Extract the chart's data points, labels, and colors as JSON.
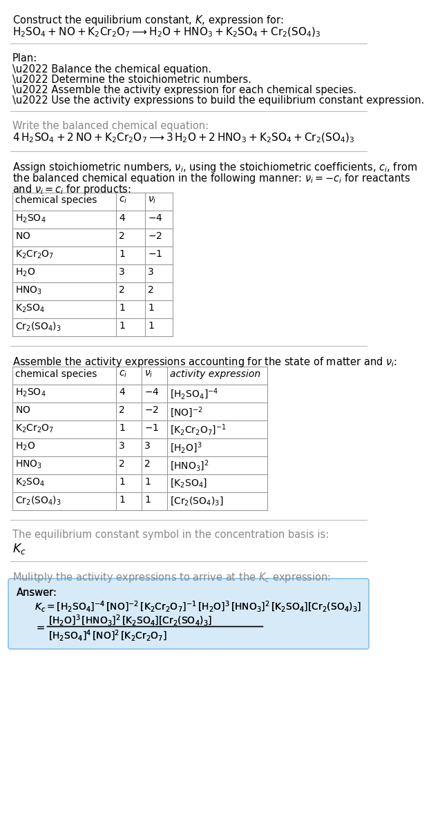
{
  "title_line1": "Construct the equilibrium constant, $K$, expression for:",
  "title_chem": "$\\mathrm{H_2SO_4 + NO + K_2Cr_2O_7 \\longrightarrow H_2O + HNO_3 + K_2SO_4 + Cr_2(SO_4)_3}$",
  "plan_header": "Plan:",
  "plan_items": [
    "\\u2022 Balance the chemical equation.",
    "\\u2022 Determine the stoichiometric numbers.",
    "\\u2022 Assemble the activity expression for each chemical species.",
    "\\u2022 Use the activity expressions to build the equilibrium constant expression."
  ],
  "balanced_header": "Write the balanced chemical equation:",
  "balanced_eq": "$\\mathrm{4\\,H_2SO_4 + 2\\,NO + K_2Cr_2O_7 \\longrightarrow 3\\,H_2O + 2\\,HNO_3 + K_2SO_4 + Cr_2(SO_4)_3}$",
  "stoich_text1": "Assign stoichiometric numbers, $\\nu_i$, using the stoichiometric coefficients, $c_i$, from",
  "stoich_text2": "the balanced chemical equation in the following manner: $\\nu_i = -c_i$ for reactants",
  "stoich_text3": "and $\\nu_i = c_i$ for products:",
  "table1_headers": [
    "chemical species",
    "$c_i$",
    "$\\nu_i$"
  ],
  "table1_rows": [
    [
      "$\\mathrm{H_2SO_4}$",
      "4",
      "$-4$"
    ],
    [
      "$\\mathrm{NO}$",
      "2",
      "$-2$"
    ],
    [
      "$\\mathrm{K_2Cr_2O_7}$",
      "1",
      "$-1$"
    ],
    [
      "$\\mathrm{H_2O}$",
      "3",
      "3"
    ],
    [
      "$\\mathrm{HNO_3}$",
      "2",
      "2"
    ],
    [
      "$\\mathrm{K_2SO_4}$",
      "1",
      "1"
    ],
    [
      "$\\mathrm{Cr_2(SO_4)_3}$",
      "1",
      "1"
    ]
  ],
  "activity_header": "Assemble the activity expressions accounting for the state of matter and $\\nu_i$:",
  "table2_headers": [
    "chemical species",
    "$c_i$",
    "$\\nu_i$",
    "activity expression"
  ],
  "table2_rows": [
    [
      "$\\mathrm{H_2SO_4}$",
      "4",
      "$-4$",
      "$[\\mathrm{H_2SO_4}]^{-4}$"
    ],
    [
      "$\\mathrm{NO}$",
      "2",
      "$-2$",
      "$[\\mathrm{NO}]^{-2}$"
    ],
    [
      "$\\mathrm{K_2Cr_2O_7}$",
      "1",
      "$-1$",
      "$[\\mathrm{K_2Cr_2O_7}]^{-1}$"
    ],
    [
      "$\\mathrm{H_2O}$",
      "3",
      "3",
      "$[\\mathrm{H_2O}]^{3}$"
    ],
    [
      "$\\mathrm{HNO_3}$",
      "2",
      "2",
      "$[\\mathrm{HNO_3}]^{2}$"
    ],
    [
      "$\\mathrm{K_2SO_4}$",
      "1",
      "1",
      "$[\\mathrm{K_2SO_4}]$"
    ],
    [
      "$\\mathrm{Cr_2(SO_4)_3}$",
      "1",
      "1",
      "$[\\mathrm{Cr_2(SO_4)_3}]$"
    ]
  ],
  "kc_header": "The equilibrium constant symbol in the concentration basis is:",
  "kc_symbol": "$K_c$",
  "multiply_header": "Mulitply the activity expressions to arrive at the $K_c$ expression:",
  "answer_label": "Answer:",
  "ans_line1": "$K_c = [\\mathrm{H_2SO_4}]^{-4}\\,[\\mathrm{NO}]^{-2}\\,[\\mathrm{K_2Cr_2O_7}]^{-1}\\,[\\mathrm{H_2O}]^{3}\\,[\\mathrm{HNO_3}]^{2}\\,[\\mathrm{K_2SO_4}][\\mathrm{Cr_2(SO_4)_3}]$",
  "ans_num": "$[\\mathrm{H_2O}]^{3}\\,[\\mathrm{HNO_3}]^{2}\\,[\\mathrm{K_2SO_4}][\\mathrm{Cr_2(SO_4)_3}]$",
  "ans_den": "$[\\mathrm{H_2SO_4}]^{4}\\,[\\mathrm{NO}]^{2}\\,[\\mathrm{K_2Cr_2O_7}]$",
  "bg": "#ffffff",
  "fg": "#000000",
  "table_line": "#999999",
  "ans_bg": "#d6eaf8",
  "ans_border": "#85c1e9"
}
